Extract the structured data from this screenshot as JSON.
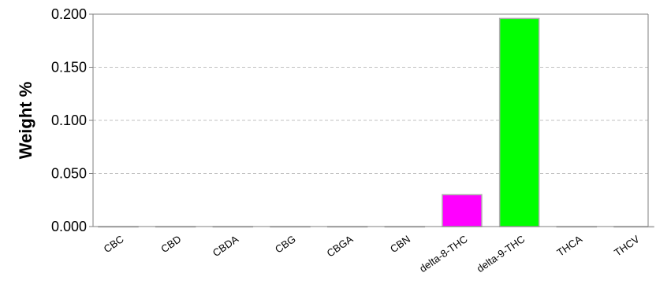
{
  "chart_data": {
    "type": "bar",
    "title": "",
    "xlabel": "",
    "ylabel": "Weight %",
    "ylim": [
      0,
      0.2
    ],
    "yticks": [
      0.0,
      0.05,
      0.1,
      0.15,
      0.2
    ],
    "ytick_labels": [
      "0.000",
      "0.050",
      "0.100",
      "0.150",
      "0.200"
    ],
    "grid": true,
    "legend": "none",
    "categories": [
      "CBC",
      "CBD",
      "CBDA",
      "CBG",
      "CBGA",
      "CBN",
      "delta-8-THC",
      "delta-9-THC",
      "THCA",
      "THCV"
    ],
    "values": [
      0,
      0,
      0,
      0,
      0,
      0,
      0.03,
      0.196,
      0,
      0
    ],
    "colors": [
      "#ff00ff",
      "#ff00ff",
      "#ff00ff",
      "#ff00ff",
      "#ff00ff",
      "#ff00ff",
      "#ff00ff",
      "#00ff00",
      "#ff00ff",
      "#ff00ff"
    ],
    "bar_border_color": "#b0b0b0",
    "grid_color": "#c0c0c0",
    "axis_color": "#7f7f7f"
  }
}
